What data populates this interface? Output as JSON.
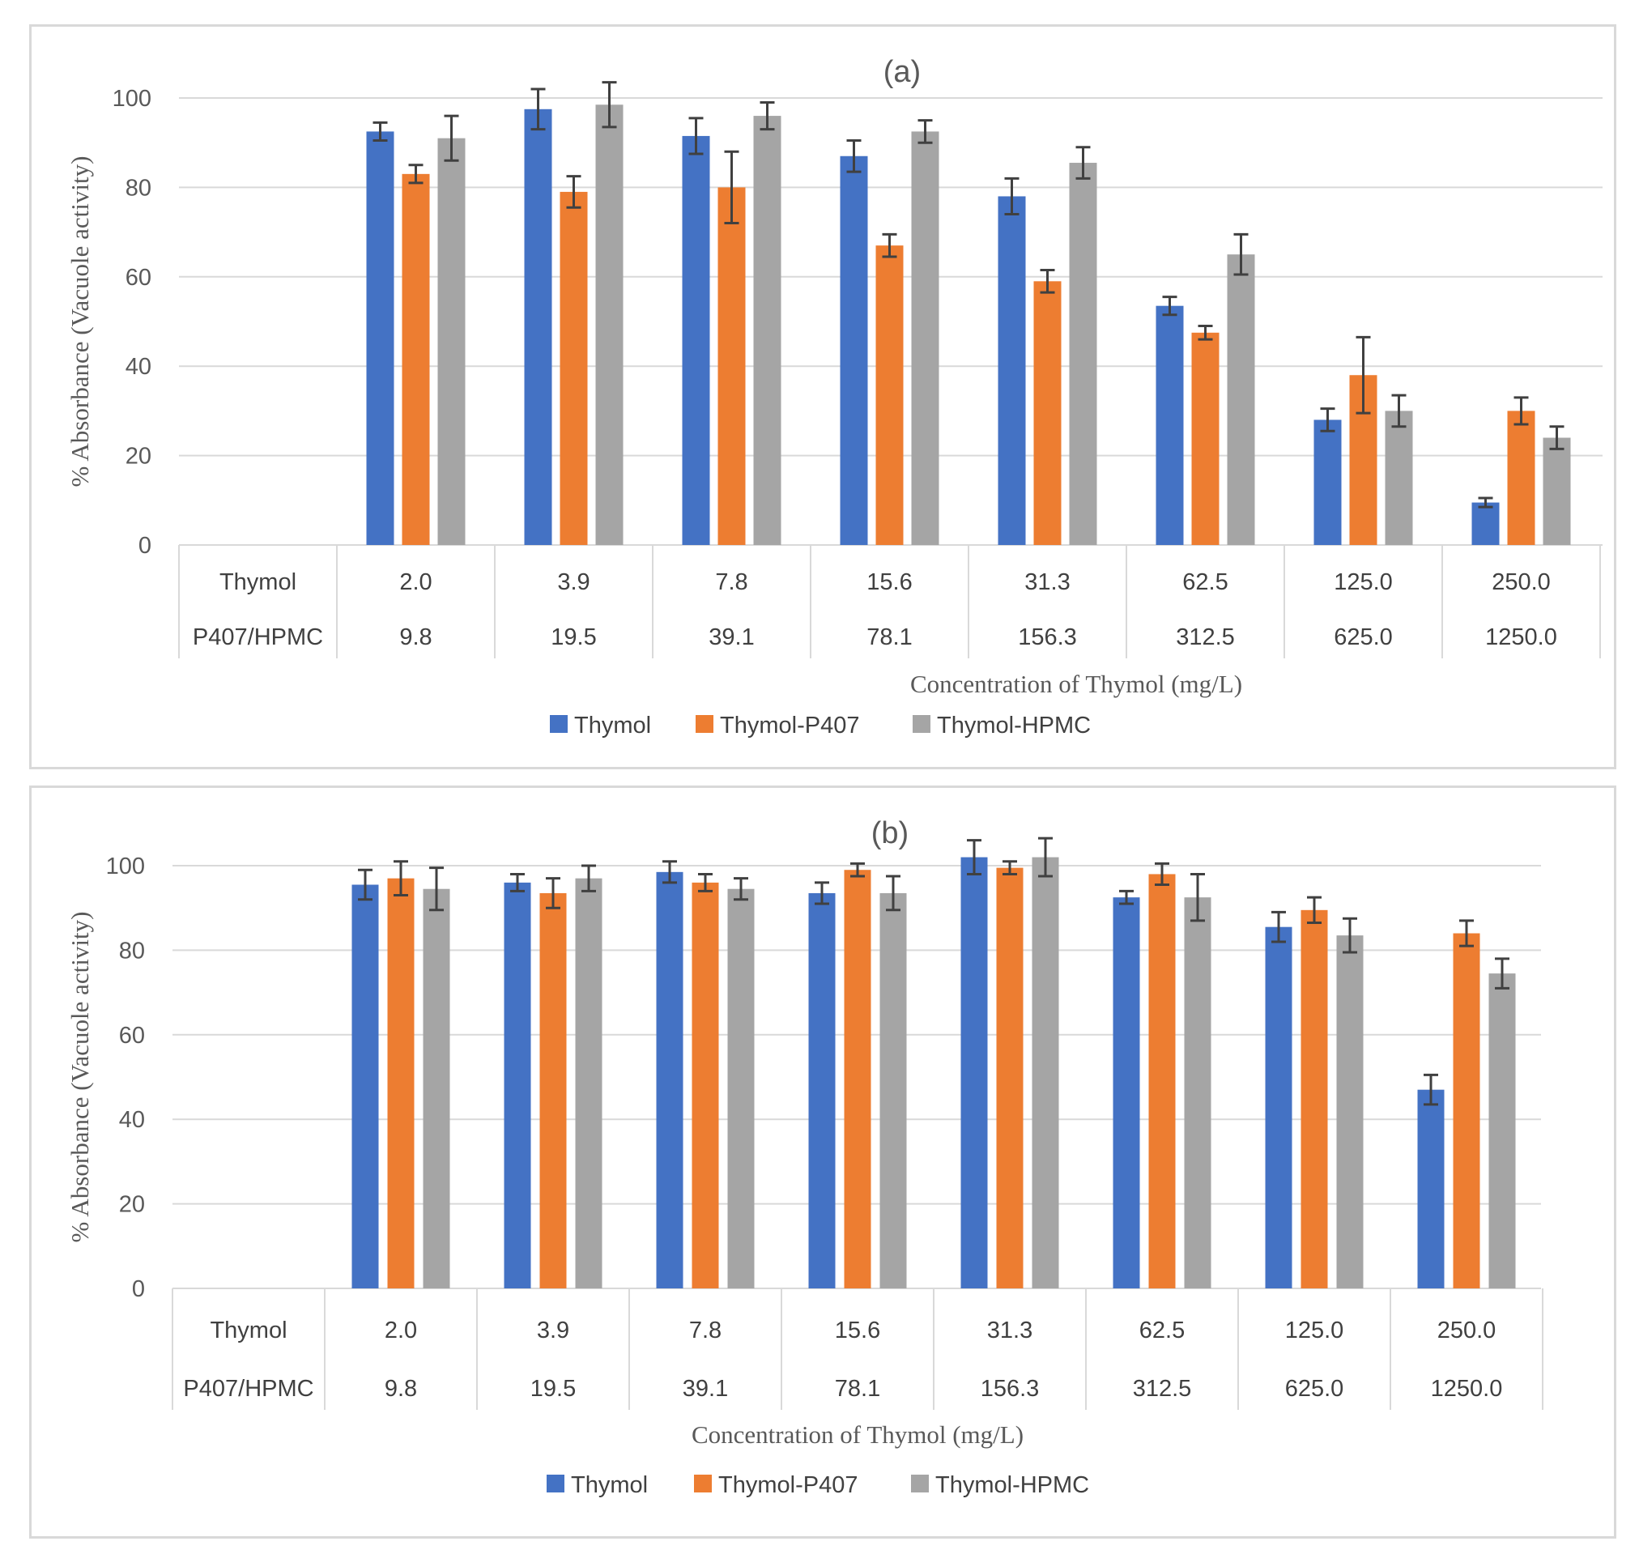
{
  "chart_data": [
    {
      "type": "bar",
      "title": "(a)",
      "xlabel": "Concentration of Thymol (mg/L)",
      "ylabel": "% Absorbance (Vacuole activity)",
      "ylim": [
        0,
        100
      ],
      "yticks": [
        "0",
        "20",
        "40",
        "60",
        "80",
        "100"
      ],
      "table_rows": [
        {
          "label": "Thymol",
          "cells": [
            "2.0",
            "3.9",
            "7.8",
            "15.6",
            "31.3",
            "62.5",
            "125.0",
            "250.0"
          ]
        },
        {
          "label": "P407/HPMC",
          "cells": [
            "9.8",
            "19.5",
            "39.1",
            "78.1",
            "156.3",
            "312.5",
            "625.0",
            "1250.0"
          ]
        }
      ],
      "series": [
        {
          "name": "Thymol",
          "color": "#4472c4",
          "values": [
            92.5,
            97.5,
            91.5,
            87.0,
            78.0,
            53.5,
            28.0,
            9.5
          ],
          "errors": [
            2.0,
            4.5,
            4.0,
            3.5,
            4.0,
            2.0,
            2.5,
            1.0
          ]
        },
        {
          "name": "Thymol-P407",
          "color": "#ed7d31",
          "values": [
            83.0,
            79.0,
            80.0,
            67.0,
            59.0,
            47.5,
            38.0,
            30.0
          ],
          "errors": [
            2.0,
            3.5,
            8.0,
            2.5,
            2.5,
            1.5,
            8.5,
            3.0
          ]
        },
        {
          "name": "Thymol-HPMC",
          "color": "#a5a5a5",
          "values": [
            91.0,
            98.5,
            96.0,
            92.5,
            85.5,
            65.0,
            30.0,
            24.0
          ],
          "errors": [
            5.0,
            5.0,
            3.0,
            2.5,
            3.5,
            4.5,
            3.5,
            2.5
          ]
        }
      ]
    },
    {
      "type": "bar",
      "title": "(b)",
      "xlabel": "Concentration of Thymol (mg/L)",
      "ylabel": "% Absorbance (Vacuole activity)",
      "ylim": [
        0,
        100
      ],
      "yticks": [
        "0",
        "20",
        "40",
        "60",
        "80",
        "100"
      ],
      "table_rows": [
        {
          "label": "Thymol",
          "cells": [
            "2.0",
            "3.9",
            "7.8",
            "15.6",
            "31.3",
            "62.5",
            "125.0",
            "250.0"
          ]
        },
        {
          "label": "P407/HPMC",
          "cells": [
            "9.8",
            "19.5",
            "39.1",
            "78.1",
            "156.3",
            "312.5",
            "625.0",
            "1250.0"
          ]
        }
      ],
      "series": [
        {
          "name": "Thymol",
          "color": "#4472c4",
          "values": [
            95.5,
            96.0,
            98.5,
            93.5,
            102.0,
            92.5,
            85.5,
            47.0
          ],
          "errors": [
            3.5,
            2.0,
            2.5,
            2.5,
            4.0,
            1.5,
            3.5,
            3.5
          ]
        },
        {
          "name": "Thymol-P407",
          "color": "#ed7d31",
          "values": [
            97.0,
            93.5,
            96.0,
            99.0,
            99.5,
            98.0,
            89.5,
            84.0
          ],
          "errors": [
            4.0,
            3.5,
            2.0,
            1.5,
            1.5,
            2.5,
            3.0,
            3.0
          ]
        },
        {
          "name": "Thymol-HPMC",
          "color": "#a5a5a5",
          "values": [
            94.5,
            97.0,
            94.5,
            93.5,
            102.0,
            92.5,
            83.5,
            74.5
          ],
          "errors": [
            5.0,
            3.0,
            2.5,
            4.0,
            4.5,
            5.5,
            4.0,
            3.5
          ]
        }
      ]
    }
  ]
}
